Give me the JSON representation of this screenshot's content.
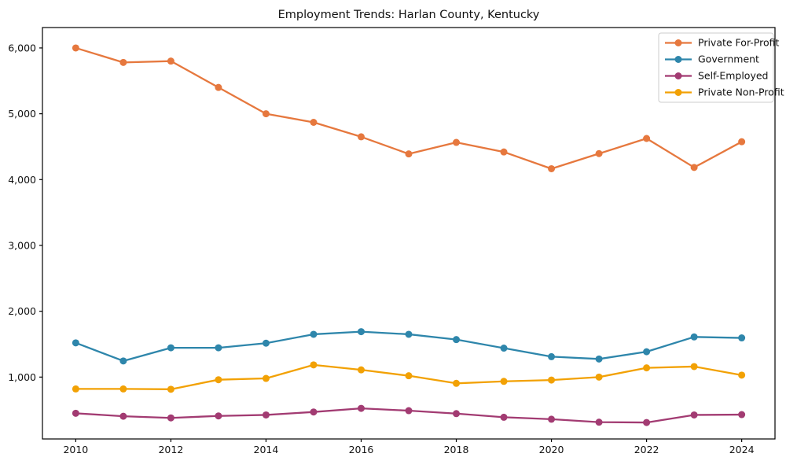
{
  "figure": {
    "title": "Employment Trends: Harlan County, Kentucky"
  },
  "chart_data": {
    "type": "line",
    "title": "Employment Trends: Harlan County, Kentucky",
    "xlabel": "",
    "ylabel": "",
    "x": [
      2010,
      2011,
      2012,
      2013,
      2014,
      2015,
      2016,
      2017,
      2018,
      2019,
      2020,
      2021,
      2022,
      2023,
      2024
    ],
    "series": [
      {
        "name": "Private For-Profit",
        "color": "#E6783E",
        "values": [
          6000,
          5780,
          5800,
          5400,
          5000,
          4870,
          4650,
          4390,
          4565,
          4420,
          4165,
          4395,
          4625,
          4185,
          4575
        ]
      },
      {
        "name": "Government",
        "color": "#2E86AB",
        "values": [
          1520,
          1245,
          1445,
          1445,
          1515,
          1650,
          1690,
          1650,
          1570,
          1440,
          1310,
          1275,
          1385,
          1610,
          1595
        ]
      },
      {
        "name": "Self-Employed",
        "color": "#A23B72",
        "values": [
          450,
          405,
          380,
          410,
          425,
          470,
          525,
          490,
          445,
          390,
          360,
          315,
          310,
          425,
          430
        ]
      },
      {
        "name": "Private Non-Profit",
        "color": "#F2A104",
        "values": [
          820,
          820,
          815,
          960,
          980,
          1185,
          1110,
          1020,
          905,
          935,
          955,
          1000,
          1140,
          1160,
          1030
        ]
      }
    ],
    "xticks": [
      2010,
      2012,
      2014,
      2016,
      2018,
      2020,
      2022,
      2024
    ],
    "xtick_labels": [
      "2010",
      "2012",
      "2014",
      "2016",
      "2018",
      "2020",
      "2022",
      "2024"
    ],
    "yticks": [
      1000,
      2000,
      3000,
      4000,
      5000,
      6000
    ],
    "ytick_labels": [
      "1,000",
      "2,000",
      "3,000",
      "4,000",
      "5,000",
      "6,000"
    ],
    "xlim": [
      2009.3,
      2024.7
    ],
    "ylim": [
      60,
      6310
    ],
    "grid": false,
    "legend_position": "upper right",
    "axis_color": "#000000",
    "plot_background": "#ffffff"
  }
}
